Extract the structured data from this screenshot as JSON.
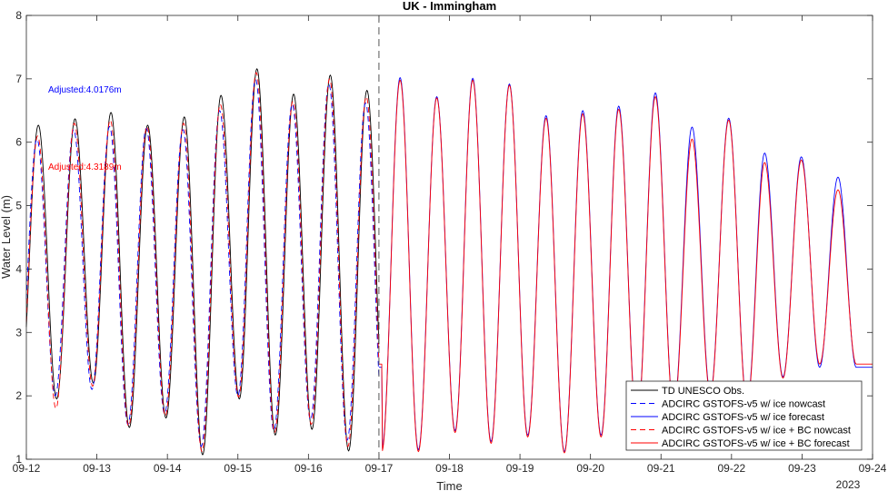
{
  "chart_data": {
    "type": "line",
    "title": "UK - Immingham",
    "xlabel": "Time",
    "ylabel": "Water Level (m)",
    "year_label": "2023",
    "x_ticks": [
      "09-12",
      "09-13",
      "09-14",
      "09-15",
      "09-16",
      "09-17",
      "09-18",
      "09-19",
      "09-20",
      "09-21",
      "09-22",
      "09-23",
      "09-24"
    ],
    "x_range_days": [
      0,
      12
    ],
    "ylim": [
      1,
      8
    ],
    "y_ticks": [
      1,
      2,
      3,
      4,
      5,
      6,
      7,
      8
    ],
    "nowcast_forecast_divider_day": 5,
    "annotations": [
      {
        "text": "Adjusted:4.0176m",
        "color": "#0000ff"
      },
      {
        "text": "Adjusted:4.3189m",
        "color": "#ff0000"
      }
    ],
    "legend_position": "bottom-right",
    "series": [
      {
        "name": "TD UNESCO Obs.",
        "color": "#000000",
        "dash": "solid",
        "day_range": [
          0,
          5
        ],
        "highs": [
          [
            0.17,
            6.27
          ],
          [
            0.69,
            6.37
          ],
          [
            1.2,
            6.47
          ],
          [
            1.72,
            6.27
          ],
          [
            2.24,
            6.4
          ],
          [
            2.76,
            6.74
          ],
          [
            3.27,
            7.16
          ],
          [
            3.79,
            6.76
          ],
          [
            4.31,
            7.06
          ],
          [
            4.83,
            6.82
          ]
        ],
        "lows": [
          [
            0.43,
            1.95
          ],
          [
            0.95,
            2.2
          ],
          [
            1.46,
            1.5
          ],
          [
            1.98,
            1.65
          ],
          [
            2.5,
            1.07
          ],
          [
            3.02,
            1.95
          ],
          [
            3.53,
            1.38
          ],
          [
            4.05,
            1.47
          ],
          [
            4.57,
            1.13
          ],
          [
            5.09,
            1.35
          ]
        ]
      },
      {
        "name": "ADCIRC GSTOFS-v5 w/ ice nowcast",
        "color": "#0000ff",
        "dash": "dashed",
        "day_range": [
          0,
          5
        ],
        "highs": [
          [
            0.15,
            6.05
          ],
          [
            0.67,
            6.2
          ],
          [
            1.18,
            6.25
          ],
          [
            1.7,
            6.22
          ],
          [
            2.22,
            6.2
          ],
          [
            2.74,
            6.5
          ],
          [
            3.25,
            7.0
          ],
          [
            3.77,
            6.6
          ],
          [
            4.29,
            6.92
          ],
          [
            4.81,
            6.62
          ]
        ],
        "lows": [
          [
            0.41,
            2.0
          ],
          [
            0.93,
            2.1
          ],
          [
            1.44,
            1.55
          ],
          [
            1.96,
            1.72
          ],
          [
            2.48,
            1.2
          ],
          [
            3.0,
            2.0
          ],
          [
            3.51,
            1.45
          ],
          [
            4.03,
            1.62
          ],
          [
            4.55,
            1.3
          ],
          [
            5.07,
            1.4
          ]
        ]
      },
      {
        "name": "ADCIRC GSTOFS-v5 w/ ice forecast",
        "color": "#0000ff",
        "dash": "solid",
        "day_range": [
          5,
          12
        ],
        "highs": [
          [
            5.3,
            7.02
          ],
          [
            5.82,
            6.72
          ],
          [
            6.33,
            7.01
          ],
          [
            6.85,
            6.92
          ],
          [
            7.37,
            6.42
          ],
          [
            7.89,
            6.5
          ],
          [
            8.4,
            6.57
          ],
          [
            8.92,
            6.78
          ],
          [
            9.44,
            6.24
          ],
          [
            9.96,
            6.38
          ],
          [
            10.47,
            5.83
          ],
          [
            10.99,
            5.77
          ],
          [
            11.51,
            5.45
          ]
        ],
        "lows": [
          [
            5.56,
            1.15
          ],
          [
            6.08,
            1.45
          ],
          [
            6.59,
            1.28
          ],
          [
            7.11,
            1.38
          ],
          [
            7.63,
            1.12
          ],
          [
            8.15,
            1.38
          ],
          [
            8.66,
            1.55
          ],
          [
            9.18,
            1.78
          ],
          [
            9.7,
            2.05
          ],
          [
            10.22,
            1.88
          ],
          [
            10.73,
            2.3
          ],
          [
            11.25,
            2.45
          ]
        ]
      },
      {
        "name": "ADCIRC GSTOFS-v5 w/ ice + BC nowcast",
        "color": "#ff0000",
        "dash": "dashed",
        "day_range": [
          0,
          5
        ],
        "highs": [
          [
            0.16,
            6.1
          ],
          [
            0.68,
            6.3
          ],
          [
            1.19,
            6.35
          ],
          [
            1.71,
            6.25
          ],
          [
            2.23,
            6.3
          ],
          [
            2.75,
            6.6
          ],
          [
            3.26,
            7.1
          ],
          [
            3.78,
            6.65
          ],
          [
            4.3,
            7.0
          ],
          [
            4.82,
            6.72
          ]
        ],
        "lows": [
          [
            0.42,
            1.8
          ],
          [
            0.94,
            2.15
          ],
          [
            1.45,
            1.52
          ],
          [
            1.97,
            1.68
          ],
          [
            2.49,
            1.12
          ],
          [
            3.01,
            1.98
          ],
          [
            3.52,
            1.42
          ],
          [
            4.04,
            1.55
          ],
          [
            4.56,
            1.2
          ],
          [
            5.08,
            1.38
          ]
        ]
      },
      {
        "name": "ADCIRC GSTOFS-v5 w/ ice + BC forecast",
        "color": "#ff0000",
        "dash": "solid",
        "day_range": [
          5,
          12
        ],
        "highs": [
          [
            5.3,
            6.98
          ],
          [
            5.82,
            6.7
          ],
          [
            6.33,
            6.98
          ],
          [
            6.85,
            6.9
          ],
          [
            7.37,
            6.38
          ],
          [
            7.89,
            6.45
          ],
          [
            8.4,
            6.52
          ],
          [
            8.92,
            6.72
          ],
          [
            9.44,
            6.05
          ],
          [
            9.96,
            6.35
          ],
          [
            10.47,
            5.68
          ],
          [
            10.99,
            5.72
          ],
          [
            11.51,
            5.25
          ]
        ],
        "lows": [
          [
            5.56,
            1.12
          ],
          [
            6.08,
            1.42
          ],
          [
            6.59,
            1.25
          ],
          [
            7.11,
            1.35
          ],
          [
            7.63,
            1.1
          ],
          [
            8.15,
            1.35
          ],
          [
            8.66,
            1.52
          ],
          [
            9.18,
            1.75
          ],
          [
            9.7,
            2.02
          ],
          [
            10.22,
            1.85
          ],
          [
            10.73,
            2.28
          ],
          [
            11.25,
            2.5
          ]
        ]
      }
    ]
  }
}
